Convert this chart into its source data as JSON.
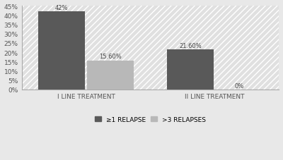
{
  "groups": [
    "I LINE TREATMENT",
    "II LINE TREATMENT"
  ],
  "series": [
    {
      "label": "≥1 RELAPSE",
      "values": [
        42,
        21.6
      ],
      "color": "#595959"
    },
    {
      "label": ">3 RELAPSES",
      "values": [
        15.6,
        0
      ],
      "color": "#b8b8b8"
    }
  ],
  "bar_labels": [
    [
      "42%",
      "15.60%"
    ],
    [
      "21.60%",
      "0%"
    ]
  ],
  "ylim": [
    0,
    45
  ],
  "yticks": [
    0,
    5,
    10,
    15,
    20,
    25,
    30,
    35,
    40,
    45
  ],
  "yticklabels": [
    "0%",
    "5%",
    "10%",
    "15%",
    "20%",
    "25%",
    "30%",
    "35%",
    "40%",
    "45%"
  ],
  "background_color": "#e8e8e8",
  "bar_width": 0.18,
  "group_centers": [
    0.25,
    0.75
  ],
  "xlim": [
    0.0,
    1.0
  ],
  "fontsize_labels": 6,
  "fontsize_ticks": 6.5,
  "fontsize_legend": 6.5,
  "fontsize_xticklabel": 6.5
}
